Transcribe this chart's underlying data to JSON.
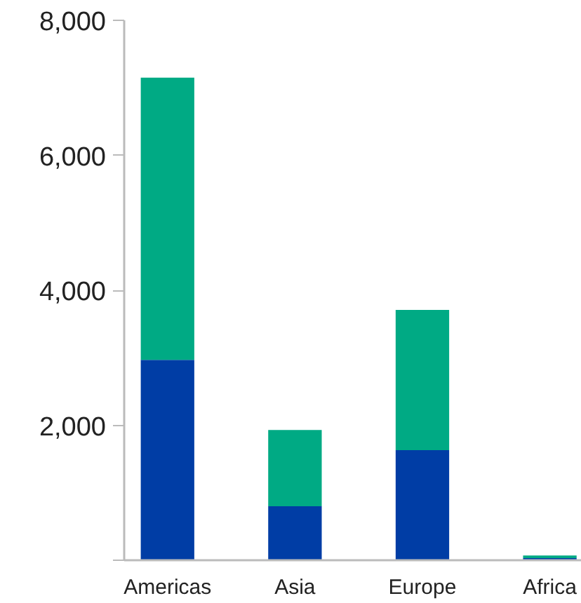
{
  "chart_data": {
    "type": "bar",
    "stacked": true,
    "categories": [
      "Americas",
      "Asia",
      "Europe",
      "Africa"
    ],
    "series": [
      {
        "color": "#003da5",
        "values": [
          2970,
          800,
          1630,
          30
        ]
      },
      {
        "color": "#00aa84",
        "values": [
          4180,
          1130,
          2080,
          40
        ]
      }
    ],
    "ylim": [
      0,
      8000
    ],
    "yticks": [
      {
        "value": 0,
        "label": null
      },
      {
        "value": 2000,
        "label": "2,000"
      },
      {
        "value": 4000,
        "label": "4,000"
      },
      {
        "value": 6000,
        "label": "6,000"
      },
      {
        "value": 8000,
        "label": "8,000"
      }
    ],
    "grid": false
  }
}
